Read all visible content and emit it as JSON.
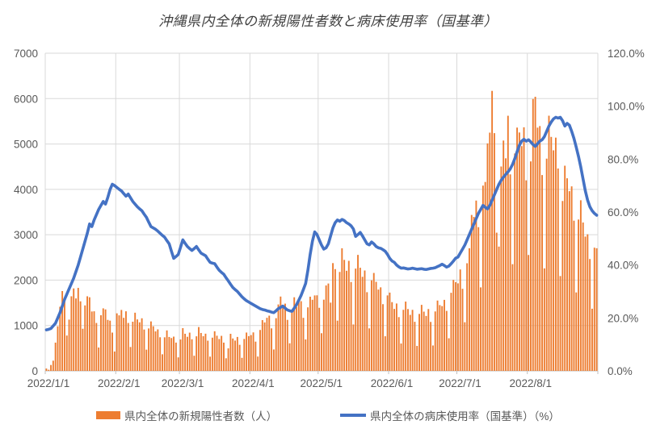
{
  "title": "沖縄県内全体の新規陽性者数と病床使用率（国基準）",
  "legend": {
    "bar_label": "県内全体の新規陽性者数（人）",
    "line_label": "県内全体の病床使用率（国基準）（%）"
  },
  "colors": {
    "bar": "#ED7D31",
    "line": "#4472C4",
    "grid": "#D9D9D9",
    "axis": "#BFBFBF",
    "tick_text": "#595959",
    "title_text": "#404040"
  },
  "chart_data": {
    "type": "bar+line combo",
    "date_range": [
      "2022/1/1",
      "2022/8/31"
    ],
    "total_days": 243,
    "x_ticks": {
      "labels": [
        "2022/1/1",
        "2022/2/1",
        "2022/3/1",
        "2022/4/1",
        "2022/5/1",
        "2022/6/1",
        "2022/7/1",
        "2022/8/1"
      ],
      "day_offsets": [
        0,
        31,
        59,
        90,
        120,
        151,
        181,
        212
      ]
    },
    "left_axis": {
      "title_hidden": true,
      "min": 0,
      "max": 7000,
      "step": 1000,
      "labels": [
        "0",
        "1000",
        "2000",
        "3000",
        "4000",
        "5000",
        "6000",
        "7000"
      ]
    },
    "right_axis": {
      "title_hidden": true,
      "min": 0,
      "max": 120,
      "step": 20,
      "labels": [
        "0.0%",
        "20.0%",
        "40.0%",
        "60.0%",
        "80.0%",
        "100.0%",
        "120.0%"
      ]
    },
    "grid": true,
    "legend_position": "bottom",
    "series": [
      {
        "name": "県内全体の新規陽性者数（人）",
        "type": "bar",
        "axis": "left",
        "color": "#ED7D31",
        "values": [
          52,
          25,
          130,
          225,
          623,
          981,
          1414,
          1759,
          1533,
          779,
          1130,
          1644,
          1817,
          1596,
          1829,
          1533,
          929,
          1443,
          1644,
          1622,
          1309,
          1313,
          1056,
          515,
          1226,
          1378,
          1355,
          1124,
          1107,
          844,
          427,
          1268,
          1224,
          1343,
          1169,
          1313,
          1056,
          527,
          1084,
          1282,
          1134,
          1070,
          1159,
          911,
          468,
          935,
          1090,
          983,
          871,
          915,
          741,
          366,
          740,
          892,
          747,
          724,
          755,
          624,
          298,
          692,
          942,
          818,
          751,
          843,
          697,
          334,
          762,
          966,
          836,
          764,
          820,
          666,
          314,
          732,
          873,
          775,
          702,
          772,
          623,
          278,
          496,
          817,
          714,
          668,
          748,
          575,
          288,
          704,
          845,
          766,
          789,
          848,
          645,
          316,
          902,
          1119,
          1068,
          1170,
          1217,
          937,
          472,
          1161,
          1464,
          1638,
          1400,
          1482,
          1124,
          608,
          1336,
          1622,
          1408,
          1520,
          1536,
          1169,
          693,
          1400,
          1635,
          1567,
          1663,
          1665,
          1390,
          830,
          1569,
          1882,
          1925,
          1504,
          2375,
          2243,
          1107,
          2180,
          2702,
          2446,
          2206,
          2425,
          1958,
          1023,
          2254,
          2556,
          2273,
          2073,
          2212,
          1734,
          937,
          1996,
          2158,
          1963,
          1792,
          1841,
          1470,
          763,
          1663,
          1725,
          1515,
          1366,
          1485,
          1185,
          603,
          1346,
          1527,
          1363,
          1234,
          1345,
          1082,
          550,
          1255,
          1455,
          1306,
          1211,
          1363,
          1079,
          560,
          1310,
          1550,
          1450,
          1428,
          1565,
          1322,
          719,
          1721,
          2004,
          1956,
          1929,
          2235,
          1809,
          1072,
          2372,
          2702,
          3436,
          3394,
          3753,
          3167,
          1840,
          4083,
          4163,
          5013,
          5250,
          6170,
          5239,
          3046,
          2739,
          4504,
          5076,
          4684,
          5622,
          4330,
          2352,
          4790,
          5361,
          5253,
          4952,
          5368,
          4199,
          2554,
          4616,
          5991,
          6040,
          5360,
          5395,
          4315,
          2259,
          4677,
          5623,
          5156,
          4860,
          5140,
          4460,
          2090,
          3744,
          4521,
          4244,
          3960,
          4066,
          3310,
          1729,
          3335,
          3760,
          3270,
          2960,
          3010,
          2465,
          1370,
          2715,
          2702
        ]
      },
      {
        "name": "県内全体の病床使用率（国基準）（%）",
        "type": "line",
        "axis": "right",
        "color": "#4472C4",
        "values": [
          15.5,
          15.7,
          16.0,
          17.0,
          18.0,
          20.0,
          22.0,
          24.5,
          27.0,
          29.0,
          31.0,
          33.0,
          35.0,
          37.5,
          40.0,
          43.0,
          46.0,
          49.0,
          52.0,
          55.5,
          54.5,
          57.0,
          59.0,
          61.0,
          62.5,
          64.0,
          63.0,
          65.5,
          68.5,
          70.5,
          70.0,
          69.3,
          68.6,
          68.0,
          67.0,
          66.0,
          66.8,
          65.4,
          64.0,
          63.0,
          62.0,
          61.2,
          60.5,
          59.2,
          58.0,
          56.2,
          54.5,
          54.0,
          53.5,
          52.8,
          52.0,
          51.2,
          50.5,
          49.2,
          48.0,
          45.2,
          42.5,
          43.2,
          44.0,
          46.7,
          49.5,
          48.2,
          47.0,
          46.2,
          45.5,
          46.2,
          47.0,
          45.7,
          44.5,
          44.0,
          43.5,
          42.2,
          41.0,
          40.7,
          40.5,
          39.2,
          38.0,
          37.2,
          36.5,
          35.2,
          34.0,
          32.7,
          31.5,
          30.7,
          30.0,
          29.0,
          28.0,
          27.2,
          26.5,
          26.0,
          25.5,
          25.0,
          24.5,
          24.0,
          23.5,
          23.2,
          23.0,
          22.7,
          22.5,
          22.2,
          22.0,
          22.7,
          23.5,
          24.0,
          24.5,
          23.7,
          23.0,
          22.7,
          22.5,
          23.7,
          25.0,
          26.7,
          28.5,
          30.7,
          33.0,
          38.0,
          44.0,
          49.0,
          52.5,
          51.5,
          49.5,
          47.5,
          46.0,
          46.5,
          48.0,
          51.0,
          54.0,
          56.0,
          57.0,
          56.5,
          57.2,
          56.8,
          56.0,
          55.5,
          54.8,
          53.6,
          50.8,
          51.5,
          52.3,
          51.0,
          49.5,
          48.0,
          47.6,
          48.7,
          48.0,
          47.0,
          46.5,
          46.3,
          45.8,
          45.2,
          44.0,
          42.5,
          41.5,
          41.0,
          40.0,
          39.3,
          38.8,
          38.9,
          38.7,
          38.5,
          38.6,
          38.8,
          38.6,
          38.4,
          38.5,
          38.6,
          38.4,
          38.3,
          38.5,
          38.7,
          38.8,
          39.0,
          39.4,
          39.8,
          40.3,
          39.8,
          39.2,
          39.6,
          40.5,
          41.5,
          42.6,
          43.0,
          44.5,
          46.0,
          47.5,
          49.5,
          51.5,
          53.5,
          55.5,
          57.5,
          59.5,
          61.0,
          62.5,
          61.8,
          61.2,
          62.5,
          64.5,
          66.5,
          68.5,
          70.5,
          72.0,
          73.2,
          74.2,
          75.2,
          76.3,
          78.0,
          80.2,
          82.8,
          85.2,
          86.8,
          87.5,
          86.8,
          87.3,
          86.5,
          85.5,
          84.8,
          85.8,
          86.8,
          87.3,
          88.5,
          90.5,
          92.5,
          94.0,
          95.2,
          95.8,
          95.5,
          95.8,
          94.5,
          92.5,
          93.5,
          92.8,
          90.5,
          87.8,
          84.5,
          81.0,
          77.0,
          72.5,
          68.0,
          64.5,
          62.0,
          60.5,
          59.5,
          58.8
        ]
      }
    ]
  }
}
